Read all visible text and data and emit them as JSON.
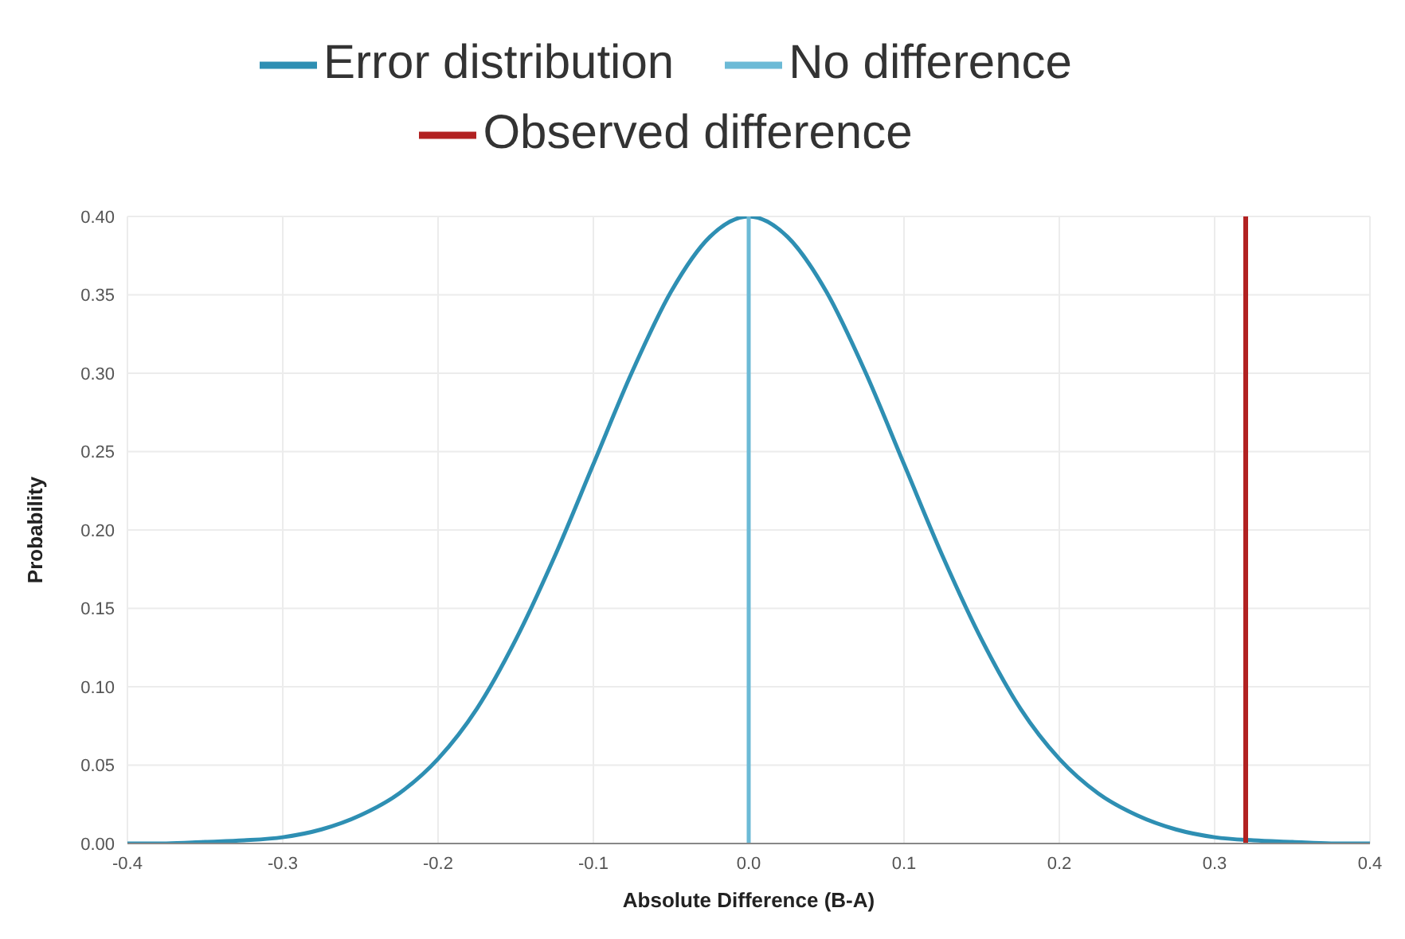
{
  "chart_data": {
    "type": "line",
    "xlabel": "Absolute Difference (B-A)",
    "ylabel": "Probability",
    "xlim": [
      -0.4,
      0.4
    ],
    "xticks": [
      -0.4,
      -0.3,
      -0.2,
      -0.1,
      {
        "value": 0,
        "label": "0.0"
      },
      0.1,
      0.2,
      0.3,
      0.4
    ],
    "ylim": [
      0,
      0.4
    ],
    "yticks": [
      {
        "value": 0,
        "label": "0.00"
      },
      0.05,
      {
        "value": 0.1,
        "label": "0.10"
      },
      0.15,
      {
        "value": 0.2,
        "label": "0.20"
      },
      0.25,
      {
        "value": 0.3,
        "label": "0.30"
      },
      0.35,
      {
        "value": 0.4,
        "label": "0.40"
      }
    ],
    "grid": true,
    "legend": "top",
    "marker": "none",
    "line_style": "solid",
    "series": [
      {
        "name": "Error distribution",
        "color": "#2e8fb3",
        "x": [
          -0.4,
          -0.375,
          -0.35,
          -0.325,
          -0.3,
          -0.275,
          -0.25,
          -0.225,
          -0.2,
          -0.175,
          -0.15,
          -0.125,
          -0.1,
          -0.075,
          -0.05,
          -0.025,
          0,
          0.025,
          0.05,
          0.075,
          0.1,
          0.125,
          0.15,
          0.175,
          0.2,
          0.225,
          0.25,
          0.275,
          0.3,
          0.325,
          0.35,
          0.375,
          0.4
        ],
        "values": [
          0,
          0,
          0.001,
          0.002,
          0.004,
          0.009,
          0.018,
          0.032,
          0.054,
          0.086,
          0.13,
          0.183,
          0.242,
          0.301,
          0.352,
          0.387,
          0.4,
          0.387,
          0.352,
          0.301,
          0.242,
          0.183,
          0.13,
          0.086,
          0.054,
          0.032,
          0.018,
          0.009,
          0.004,
          0.002,
          0.001,
          0,
          0
        ]
      },
      {
        "name": "No difference",
        "color": "#6cbad6",
        "x": [
          0,
          0
        ],
        "values": [
          0,
          0.4
        ]
      },
      {
        "name": "Observed difference",
        "color": "#b22222",
        "x": [
          0.32,
          0.32
        ],
        "values": [
          0,
          0.4
        ]
      }
    ]
  }
}
